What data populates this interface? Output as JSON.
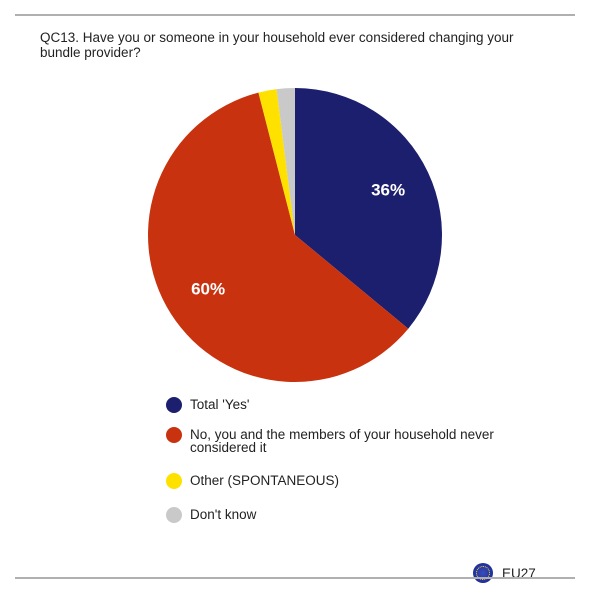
{
  "chart_data": {
    "type": "pie",
    "title": "QC13. Have you or someone in your household ever considered changing your bundle provider?",
    "categories": [
      "Total 'Yes'",
      "No, you and the members of your household never considered it",
      "Other (SPONTANEOUS)",
      "Don't know"
    ],
    "values": [
      36,
      60,
      2,
      2
    ],
    "value_labels": [
      "36%",
      "60%",
      null,
      null
    ],
    "colors": [
      "#1b1f6e",
      "#c9320f",
      "#ffe100",
      "#c9c9c9"
    ],
    "region": "EU27"
  }
}
